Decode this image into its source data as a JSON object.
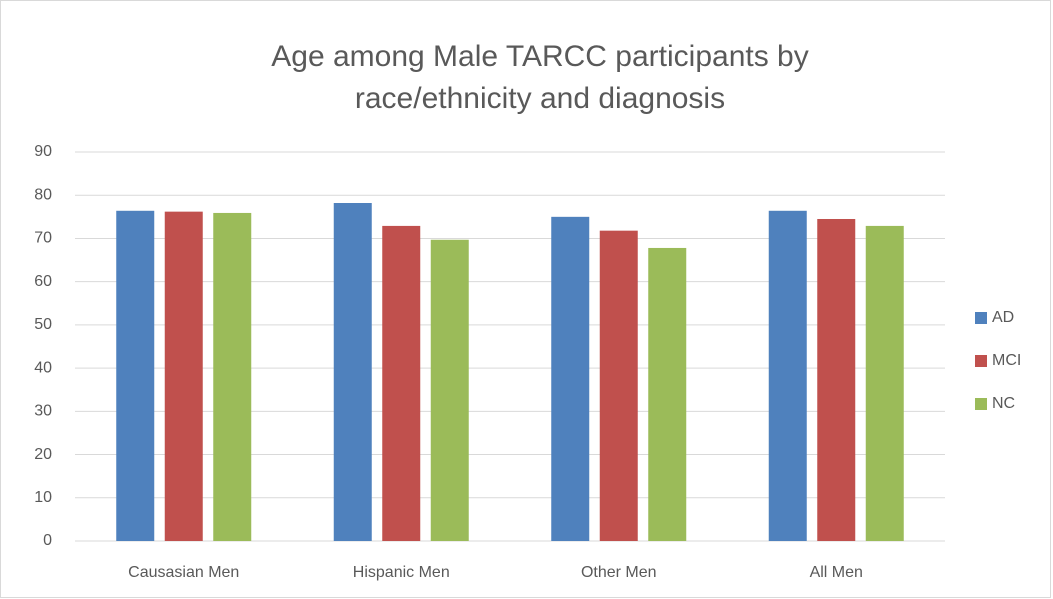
{
  "chart_data": {
    "type": "bar",
    "title": "Age among Male TARCC participants by race/ethnicity and diagnosis",
    "categories": [
      "Causasian Men",
      "Hispanic Men",
      "Other Men",
      "All Men"
    ],
    "series": [
      {
        "name": "AD",
        "color": "#4f81bd",
        "values": [
          76.4,
          78.2,
          75.0,
          76.4
        ]
      },
      {
        "name": "MCI",
        "color": "#c0504d",
        "values": [
          76.2,
          72.9,
          71.8,
          74.5
        ]
      },
      {
        "name": "NC",
        "color": "#9bbb59",
        "values": [
          75.9,
          69.7,
          67.8,
          72.9
        ]
      }
    ],
    "ylim": [
      0,
      90
    ],
    "yticks": [
      0,
      10,
      20,
      30,
      40,
      50,
      60,
      70,
      80,
      90
    ],
    "grid": true,
    "legend": "right"
  }
}
